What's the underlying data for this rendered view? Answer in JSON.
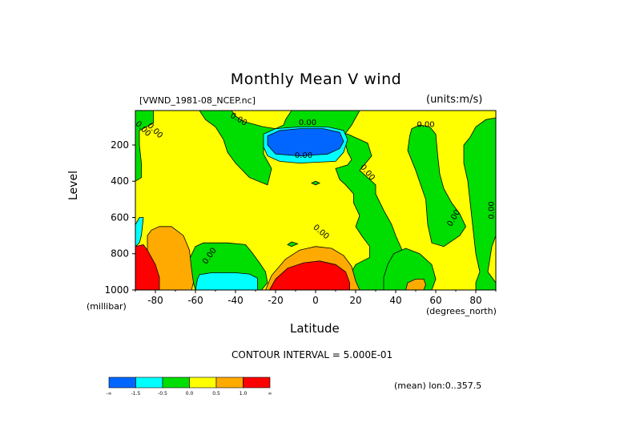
{
  "chart_data": {
    "type": "heatmap",
    "title": "Monthly Mean V wind",
    "subtitle": "[VWND_1981-08_NCEP.nc]",
    "units_label": "(units:m/s)",
    "xlabel": "Latitude",
    "xunit": "(degrees_north)",
    "ylabel": "Level",
    "yunit": "(millibar)",
    "xlim": [
      -90,
      90
    ],
    "ylim": [
      1000,
      10
    ],
    "x_ticks": [
      -80,
      -60,
      -40,
      -20,
      0,
      20,
      40,
      60,
      80
    ],
    "y_ticks": [
      200,
      400,
      600,
      800,
      1000
    ],
    "contour_interval_label": "CONTOUR INTERVAL = 5.000E-01",
    "mean_label": "(mean) lon:0..357.5",
    "contour_line_labels": [
      {
        "text": "0.00",
        "x": -87,
        "y": 120,
        "rotate": 45
      },
      {
        "text": "0.00",
        "x": -81,
        "y": 130,
        "rotate": 45
      },
      {
        "text": "0.00",
        "x": -39,
        "y": 70,
        "rotate": 30
      },
      {
        "text": "0.00",
        "x": -4,
        "y": 90,
        "rotate": 0
      },
      {
        "text": "0.00",
        "x": -6,
        "y": 270,
        "rotate": 0
      },
      {
        "text": "0.00",
        "x": 25,
        "y": 360,
        "rotate": 50
      },
      {
        "text": "0.00",
        "x": 55,
        "y": 100,
        "rotate": 0
      },
      {
        "text": "0.00",
        "x": 70,
        "y": 610,
        "rotate": -60
      },
      {
        "text": "0.00",
        "x": 89,
        "y": 560,
        "rotate": -90
      },
      {
        "text": "0.00",
        "x": 2,
        "y": 690,
        "rotate": 40
      },
      {
        "text": "0.00",
        "x": -52,
        "y": 820,
        "rotate": -55
      }
    ],
    "legend": {
      "boundaries": [
        "-∞",
        "-1.5",
        "-0.5",
        "0.0",
        "0.5",
        "1.0",
        "∞"
      ],
      "colors": [
        "#0066ff",
        "#00ffff",
        "#00dd00",
        "#ffff00",
        "#ffaa00",
        "#ff0000"
      ]
    },
    "regions": [
      {
        "level": "positive",
        "color": "#ffff00",
        "poly": [
          [
            -90,
            10
          ],
          [
            90,
            10
          ],
          [
            90,
            1000
          ],
          [
            -90,
            1000
          ]
        ]
      },
      {
        "level": "negative",
        "color": "#00dd00",
        "poly": [
          [
            -90,
            10
          ],
          [
            -81,
            10
          ],
          [
            -81,
            80
          ],
          [
            -88,
            120
          ],
          [
            -88,
            200
          ],
          [
            -87,
            300
          ],
          [
            -87,
            380
          ],
          [
            -90,
            400
          ]
        ]
      },
      {
        "level": "negative",
        "color": "#00dd00",
        "poly": [
          [
            -58,
            10
          ],
          [
            -42,
            10
          ],
          [
            -40,
            40
          ],
          [
            -36,
            70
          ],
          [
            -26,
            100
          ],
          [
            -20,
            110
          ],
          [
            -16,
            90
          ],
          [
            -15,
            60
          ],
          [
            -12,
            10
          ],
          [
            22,
            10
          ],
          [
            18,
            90
          ],
          [
            14,
            150
          ],
          [
            16,
            240
          ],
          [
            18,
            280
          ],
          [
            16,
            310
          ],
          [
            10,
            330
          ],
          [
            12,
            390
          ],
          [
            15,
            420
          ],
          [
            19,
            470
          ],
          [
            19,
            520
          ],
          [
            22,
            590
          ],
          [
            20,
            650
          ],
          [
            23,
            700
          ],
          [
            27,
            760
          ],
          [
            27,
            820
          ],
          [
            20,
            860
          ],
          [
            18,
            900
          ],
          [
            19,
            970
          ],
          [
            22,
            1000
          ],
          [
            40,
            1000
          ],
          [
            45,
            960
          ],
          [
            46,
            880
          ],
          [
            44,
            800
          ],
          [
            40,
            700
          ],
          [
            38,
            640
          ],
          [
            34,
            560
          ],
          [
            30,
            470
          ],
          [
            30,
            420
          ],
          [
            26,
            380
          ],
          [
            22,
            340
          ],
          [
            28,
            260
          ],
          [
            26,
            190
          ],
          [
            16,
            140
          ],
          [
            2,
            120
          ],
          [
            -4,
            110
          ],
          [
            -10,
            110
          ],
          [
            -20,
            130
          ],
          [
            -26,
            170
          ],
          [
            -26,
            250
          ],
          [
            -22,
            330
          ],
          [
            -24,
            420
          ],
          [
            -33,
            380
          ],
          [
            -40,
            300
          ],
          [
            -44,
            240
          ],
          [
            -46,
            170
          ],
          [
            -50,
            100
          ],
          [
            -55,
            60
          ]
        ]
      },
      {
        "level": "negative",
        "color": "#00dd00",
        "poly": [
          [
            -60,
            760
          ],
          [
            -56,
            740
          ],
          [
            -48,
            740
          ],
          [
            -44,
            740
          ],
          [
            -35,
            750
          ],
          [
            -32,
            790
          ],
          [
            -28,
            850
          ],
          [
            -25,
            900
          ],
          [
            -24,
            960
          ],
          [
            -27,
            1000
          ],
          [
            -60,
            1000
          ],
          [
            -62,
            920
          ],
          [
            -63,
            830
          ]
        ]
      },
      {
        "level": "negative",
        "color": "#00dd00",
        "poly": [
          [
            34,
            930
          ],
          [
            36,
            860
          ],
          [
            39,
            800
          ],
          [
            45,
            770
          ],
          [
            52,
            800
          ],
          [
            58,
            860
          ],
          [
            60,
            940
          ],
          [
            58,
            1000
          ],
          [
            34,
            1000
          ]
        ]
      },
      {
        "level": "negative",
        "color": "#00dd00",
        "poly": [
          [
            47,
            150
          ],
          [
            48,
            110
          ],
          [
            52,
            90
          ],
          [
            57,
            100
          ],
          [
            60,
            140
          ],
          [
            61,
            260
          ],
          [
            62,
            360
          ],
          [
            64,
            440
          ],
          [
            68,
            520
          ],
          [
            72,
            580
          ],
          [
            75,
            650
          ],
          [
            72,
            700
          ],
          [
            64,
            760
          ],
          [
            58,
            740
          ],
          [
            56,
            640
          ],
          [
            55,
            500
          ],
          [
            50,
            340
          ],
          [
            46,
            230
          ]
        ]
      },
      {
        "level": "negative",
        "color": "#00dd00",
        "poly": [
          [
            74,
            200
          ],
          [
            77,
            160
          ],
          [
            80,
            100
          ],
          [
            85,
            60
          ],
          [
            90,
            50
          ],
          [
            90,
            700
          ],
          [
            88,
            760
          ],
          [
            87,
            830
          ],
          [
            86,
            900
          ],
          [
            90,
            960
          ],
          [
            90,
            1000
          ],
          [
            80,
            1000
          ],
          [
            80,
            960
          ],
          [
            82,
            900
          ],
          [
            80,
            800
          ],
          [
            79,
            700
          ],
          [
            78,
            600
          ],
          [
            77,
            500
          ],
          [
            76,
            400
          ],
          [
            74,
            300
          ]
        ]
      },
      {
        "level": "negative",
        "color": "#00dd00",
        "poly": [
          [
            -14,
            750
          ],
          [
            -12,
            735
          ],
          [
            -9,
            745
          ],
          [
            -12,
            760
          ]
        ]
      },
      {
        "level": "negative",
        "color": "#00dd00",
        "poly": [
          [
            -2,
            410
          ],
          [
            0,
            400
          ],
          [
            2,
            410
          ],
          [
            0,
            420
          ]
        ]
      },
      {
        "level": "-0.5",
        "color": "#00ffff",
        "poly": [
          [
            -26,
            140
          ],
          [
            -20,
            110
          ],
          [
            -8,
            100
          ],
          [
            6,
            100
          ],
          [
            14,
            120
          ],
          [
            16,
            170
          ],
          [
            14,
            240
          ],
          [
            10,
            290
          ],
          [
            -8,
            300
          ],
          [
            -18,
            290
          ],
          [
            -24,
            260
          ],
          [
            -26,
            210
          ]
        ]
      },
      {
        "level": "-1.5",
        "color": "#0066ff",
        "poly": [
          [
            -24,
            150
          ],
          [
            -18,
            120
          ],
          [
            -8,
            110
          ],
          [
            4,
            110
          ],
          [
            12,
            130
          ],
          [
            14,
            180
          ],
          [
            12,
            220
          ],
          [
            6,
            250
          ],
          [
            -8,
            260
          ],
          [
            -20,
            250
          ],
          [
            -24,
            200
          ]
        ]
      },
      {
        "level": "-0.5",
        "color": "#00ffff",
        "poly": [
          [
            -59,
            940
          ],
          [
            -58,
            915
          ],
          [
            -52,
            905
          ],
          [
            -40,
            905
          ],
          [
            -33,
            912
          ],
          [
            -29,
            935
          ],
          [
            -29,
            1000
          ],
          [
            -60,
            1000
          ]
        ]
      },
      {
        "level": "-0.5",
        "color": "#00ffff",
        "poly": [
          [
            -90,
            640
          ],
          [
            -88,
            600
          ],
          [
            -86,
            600
          ],
          [
            -87,
            700
          ],
          [
            -88,
            740
          ],
          [
            -90,
            760
          ]
        ]
      },
      {
        "level": "0.5",
        "color": "#ffaa00",
        "poly": [
          [
            -84,
            700
          ],
          [
            -82,
            670
          ],
          [
            -78,
            650
          ],
          [
            -72,
            650
          ],
          [
            -66,
            700
          ],
          [
            -63,
            780
          ],
          [
            -62,
            880
          ],
          [
            -61,
            960
          ],
          [
            -62,
            1000
          ],
          [
            -78,
            1000
          ],
          [
            -82,
            960
          ],
          [
            -84,
            880
          ]
        ]
      },
      {
        "level": "0.5",
        "color": "#ffaa00",
        "poly": [
          [
            -25,
            1000
          ],
          [
            -22,
            920
          ],
          [
            -15,
            830
          ],
          [
            -8,
            780
          ],
          [
            0,
            760
          ],
          [
            8,
            770
          ],
          [
            14,
            810
          ],
          [
            18,
            870
          ],
          [
            20,
            950
          ],
          [
            22,
            1000
          ]
        ]
      },
      {
        "level": "0.5",
        "color": "#ffaa00",
        "poly": [
          [
            45,
            1000
          ],
          [
            46,
            960
          ],
          [
            50,
            940
          ],
          [
            54,
            940
          ],
          [
            55,
            970
          ],
          [
            54,
            1000
          ]
        ]
      },
      {
        "level": "1.0",
        "color": "#ff0000",
        "poly": [
          [
            -23,
            1000
          ],
          [
            -20,
            940
          ],
          [
            -14,
            880
          ],
          [
            -6,
            850
          ],
          [
            2,
            840
          ],
          [
            10,
            860
          ],
          [
            15,
            900
          ],
          [
            17,
            960
          ],
          [
            17,
            1000
          ]
        ]
      },
      {
        "level": "1.0",
        "color": "#ff0000",
        "poly": [
          [
            -90,
            760
          ],
          [
            -86,
            750
          ],
          [
            -84,
            780
          ],
          [
            -80,
            860
          ],
          [
            -78,
            930
          ],
          [
            -78,
            1000
          ],
          [
            -90,
            1000
          ]
        ]
      }
    ]
  }
}
